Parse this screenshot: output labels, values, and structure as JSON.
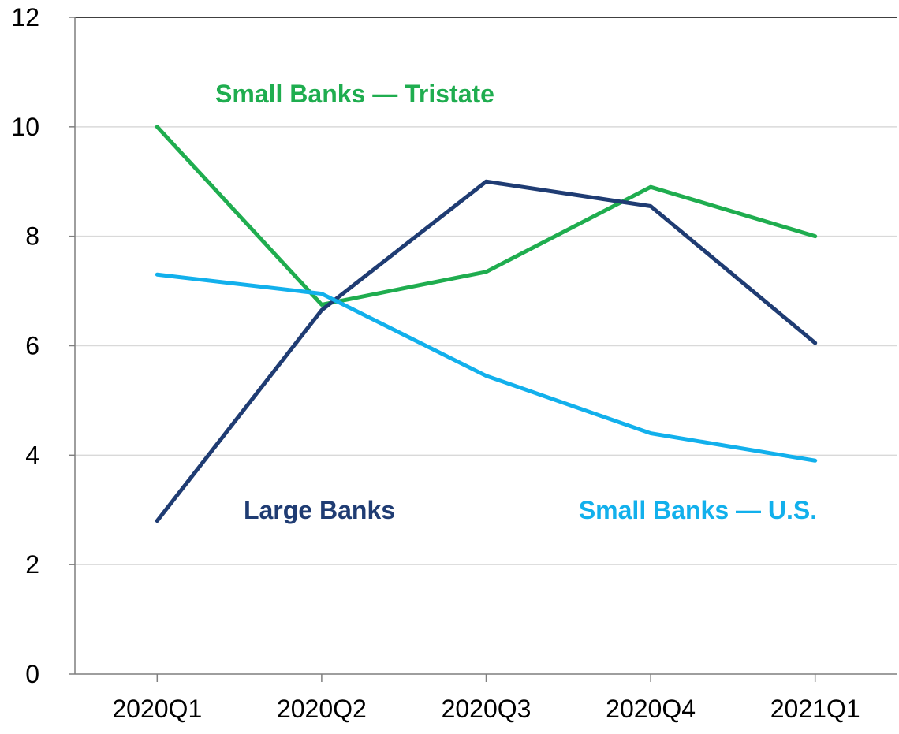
{
  "chart_data": {
    "type": "line",
    "categories": [
      "2020Q1",
      "2020Q2",
      "2020Q3",
      "2020Q4",
      "2021Q1"
    ],
    "ylim": [
      0,
      12
    ],
    "yticks": [
      0,
      2,
      4,
      6,
      8,
      10,
      12
    ],
    "grid": true,
    "series": [
      {
        "name": "Small Banks — Tristate",
        "color": "#1fad4f",
        "values": [
          10.0,
          6.75,
          7.35,
          8.9,
          8.0
        ]
      },
      {
        "name": "Large Banks",
        "color": "#1f3c73",
        "values": [
          2.8,
          6.65,
          9.0,
          8.55,
          6.05
        ]
      },
      {
        "name": "Small Banks — U.S.",
        "color": "#12b0ec",
        "values": [
          7.3,
          6.95,
          5.45,
          4.4,
          3.9
        ]
      }
    ]
  }
}
